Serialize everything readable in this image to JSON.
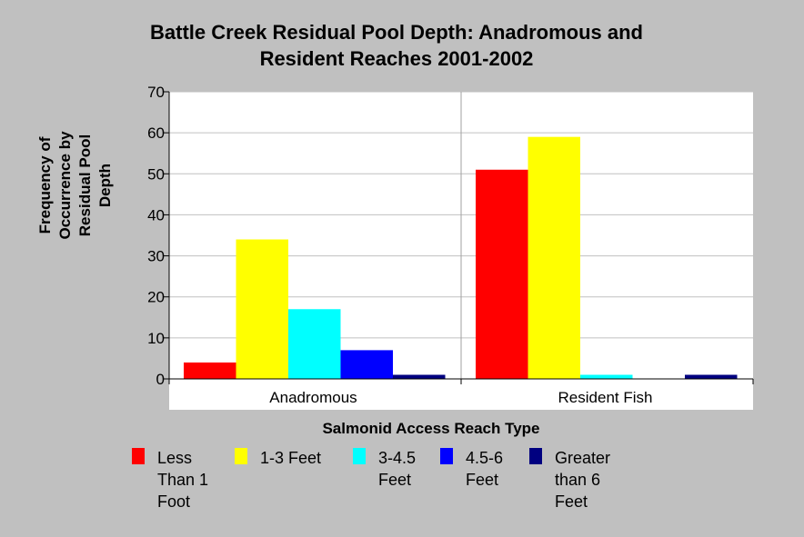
{
  "chart_data": {
    "type": "bar",
    "title": [
      "Battle Creek Residual Pool Depth: Anadromous and",
      "Resident Reaches 2001-2002"
    ],
    "ylabel": [
      "Frequency of",
      "Occurrence by",
      "Residual Pool",
      "Depth"
    ],
    "xlabel": "Salmonid Access Reach Type",
    "categories": [
      "Anadromous",
      "Resident Fish"
    ],
    "ylim": [
      0,
      70
    ],
    "yticks": [
      "0",
      "10",
      "20",
      "30",
      "40",
      "50",
      "60",
      "70"
    ],
    "grid": true,
    "legend_position": "bottom",
    "series": [
      {
        "name": [
          "Less",
          "Than 1",
          "Foot"
        ],
        "color": "#ff0000",
        "values": [
          4,
          51
        ]
      },
      {
        "name": [
          "1-3 Feet"
        ],
        "color": "#ffff00",
        "values": [
          34,
          59
        ]
      },
      {
        "name": [
          "3-4.5",
          "Feet"
        ],
        "color": "#00ffff",
        "values": [
          17,
          1
        ]
      },
      {
        "name": [
          "4.5-6",
          "Feet"
        ],
        "color": "#0000ff",
        "values": [
          7,
          0
        ]
      },
      {
        "name": [
          "Greater",
          "than 6",
          "Feet"
        ],
        "color": "#000080",
        "values": [
          1,
          1
        ]
      }
    ]
  }
}
